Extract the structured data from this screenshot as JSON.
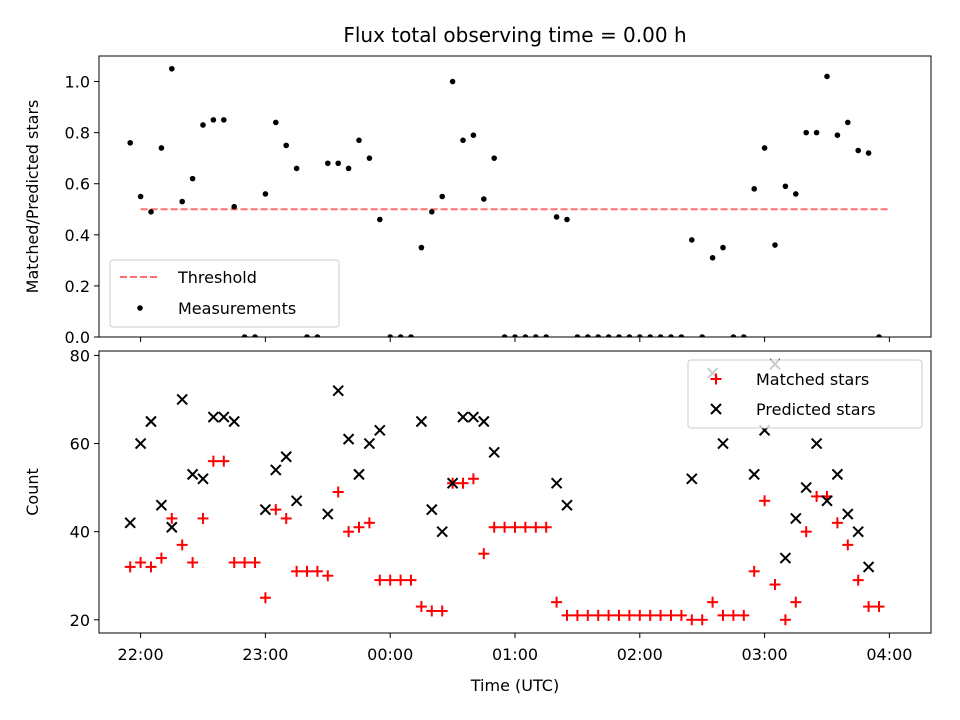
{
  "chart_data": [
    {
      "type": "scatter",
      "title": "Flux total observing time = 0.00 h",
      "xlabel": "",
      "ylabel": "Matched/Predicted stars",
      "ylim": [
        0,
        1.1
      ],
      "xlim": [
        "21:40",
        "04:20"
      ],
      "y_ticks": [
        "0.0",
        "0.2",
        "0.4",
        "0.6",
        "0.8",
        "1.0"
      ],
      "x_ticks": [
        "22:00",
        "23:00",
        "00:00",
        "01:00",
        "02:00",
        "03:00",
        "04:00"
      ],
      "legend_position": "lower-left",
      "threshold": {
        "name": "Threshold",
        "y": 0.5,
        "x_range": [
          "22:00",
          "04:00"
        ],
        "color": "#ff6f6f",
        "style": "dashed"
      },
      "series": [
        {
          "name": "Measurements",
          "color": "#000000",
          "points": [
            [
              "21:55",
              0.76
            ],
            [
              "22:00",
              0.55
            ],
            [
              "22:05",
              0.49
            ],
            [
              "22:10",
              0.74
            ],
            [
              "22:15",
              1.05
            ],
            [
              "22:20",
              0.53
            ],
            [
              "22:25",
              0.62
            ],
            [
              "22:30",
              0.83
            ],
            [
              "22:35",
              0.85
            ],
            [
              "22:40",
              0.85
            ],
            [
              "22:45",
              0.51
            ],
            [
              "22:50",
              0.0
            ],
            [
              "22:55",
              0.0
            ],
            [
              "23:00",
              0.56
            ],
            [
              "23:05",
              0.84
            ],
            [
              "23:10",
              0.75
            ],
            [
              "23:15",
              0.66
            ],
            [
              "23:20",
              0.0
            ],
            [
              "23:25",
              0.0
            ],
            [
              "23:30",
              0.68
            ],
            [
              "23:35",
              0.68
            ],
            [
              "23:40",
              0.66
            ],
            [
              "23:45",
              0.77
            ],
            [
              "23:50",
              0.7
            ],
            [
              "23:55",
              0.46
            ],
            [
              "00:00",
              0.0
            ],
            [
              "00:05",
              0.0
            ],
            [
              "00:10",
              0.0
            ],
            [
              "00:15",
              0.35
            ],
            [
              "00:20",
              0.49
            ],
            [
              "00:25",
              0.55
            ],
            [
              "00:30",
              1.0
            ],
            [
              "00:35",
              0.77
            ],
            [
              "00:40",
              0.79
            ],
            [
              "00:45",
              0.54
            ],
            [
              "00:50",
              0.7
            ],
            [
              "00:55",
              0.0
            ],
            [
              "01:00",
              0.0
            ],
            [
              "01:05",
              0.0
            ],
            [
              "01:10",
              0.0
            ],
            [
              "01:15",
              0.0
            ],
            [
              "01:20",
              0.47
            ],
            [
              "01:25",
              0.46
            ],
            [
              "01:30",
              0.0
            ],
            [
              "01:35",
              0.0
            ],
            [
              "01:40",
              0.0
            ],
            [
              "01:45",
              0.0
            ],
            [
              "01:50",
              0.0
            ],
            [
              "01:55",
              0.0
            ],
            [
              "02:00",
              0.0
            ],
            [
              "02:05",
              0.0
            ],
            [
              "02:10",
              0.0
            ],
            [
              "02:15",
              0.0
            ],
            [
              "02:20",
              0.0
            ],
            [
              "02:25",
              0.38
            ],
            [
              "02:30",
              0.0
            ],
            [
              "02:35",
              0.31
            ],
            [
              "02:40",
              0.35
            ],
            [
              "02:45",
              0.0
            ],
            [
              "02:50",
              0.0
            ],
            [
              "02:55",
              0.58
            ],
            [
              "03:00",
              0.74
            ],
            [
              "03:05",
              0.36
            ],
            [
              "03:10",
              0.59
            ],
            [
              "03:15",
              0.56
            ],
            [
              "03:20",
              0.8
            ],
            [
              "03:25",
              0.8
            ],
            [
              "03:30",
              1.02
            ],
            [
              "03:35",
              0.79
            ],
            [
              "03:40",
              0.84
            ],
            [
              "03:45",
              0.73
            ],
            [
              "03:50",
              0.72
            ],
            [
              "03:55",
              0.0
            ]
          ]
        }
      ]
    },
    {
      "type": "scatter",
      "title": "",
      "xlabel": "Time (UTC)",
      "ylabel": "Count",
      "ylim": [
        17,
        81
      ],
      "xlim": [
        "21:40",
        "04:20"
      ],
      "y_ticks": [
        "20",
        "40",
        "60",
        "80"
      ],
      "x_ticks": [
        "22:00",
        "23:00",
        "00:00",
        "01:00",
        "02:00",
        "03:00",
        "04:00"
      ],
      "legend_position": "upper-right",
      "series": [
        {
          "name": "Matched stars",
          "color": "#ff0000",
          "marker": "+",
          "points": [
            [
              "21:55",
              32
            ],
            [
              "22:00",
              33
            ],
            [
              "22:05",
              32
            ],
            [
              "22:10",
              34
            ],
            [
              "22:15",
              43
            ],
            [
              "22:20",
              37
            ],
            [
              "22:25",
              33
            ],
            [
              "22:30",
              43
            ],
            [
              "22:35",
              56
            ],
            [
              "22:40",
              56
            ],
            [
              "22:45",
              33
            ],
            [
              "22:50",
              33
            ],
            [
              "22:55",
              33
            ],
            [
              "23:00",
              25
            ],
            [
              "23:05",
              45
            ],
            [
              "23:10",
              43
            ],
            [
              "23:15",
              31
            ],
            [
              "23:20",
              31
            ],
            [
              "23:25",
              31
            ],
            [
              "23:30",
              30
            ],
            [
              "23:35",
              49
            ],
            [
              "23:40",
              40
            ],
            [
              "23:45",
              41
            ],
            [
              "23:50",
              42
            ],
            [
              "23:55",
              29
            ],
            [
              "00:00",
              29
            ],
            [
              "00:05",
              29
            ],
            [
              "00:10",
              29
            ],
            [
              "00:15",
              23
            ],
            [
              "00:20",
              22
            ],
            [
              "00:25",
              22
            ],
            [
              "00:30",
              51
            ],
            [
              "00:35",
              51
            ],
            [
              "00:40",
              52
            ],
            [
              "00:45",
              35
            ],
            [
              "00:50",
              41
            ],
            [
              "00:55",
              41
            ],
            [
              "01:00",
              41
            ],
            [
              "01:05",
              41
            ],
            [
              "01:10",
              41
            ],
            [
              "01:15",
              41
            ],
            [
              "01:20",
              24
            ],
            [
              "01:25",
              21
            ],
            [
              "01:30",
              21
            ],
            [
              "01:35",
              21
            ],
            [
              "01:40",
              21
            ],
            [
              "01:45",
              21
            ],
            [
              "01:50",
              21
            ],
            [
              "01:55",
              21
            ],
            [
              "02:00",
              21
            ],
            [
              "02:05",
              21
            ],
            [
              "02:10",
              21
            ],
            [
              "02:15",
              21
            ],
            [
              "02:20",
              21
            ],
            [
              "02:25",
              20
            ],
            [
              "02:30",
              20
            ],
            [
              "02:35",
              24
            ],
            [
              "02:40",
              21
            ],
            [
              "02:45",
              21
            ],
            [
              "02:50",
              21
            ],
            [
              "02:55",
              31
            ],
            [
              "03:00",
              47
            ],
            [
              "03:05",
              28
            ],
            [
              "03:10",
              20
            ],
            [
              "03:15",
              24
            ],
            [
              "03:20",
              40
            ],
            [
              "03:25",
              48
            ],
            [
              "03:30",
              48
            ],
            [
              "03:35",
              42
            ],
            [
              "03:40",
              37
            ],
            [
              "03:45",
              29
            ],
            [
              "03:50",
              23
            ],
            [
              "03:55",
              23
            ]
          ]
        },
        {
          "name": "Predicted stars",
          "color": "#000000",
          "marker": "x",
          "points": [
            [
              "21:55",
              42
            ],
            [
              "22:00",
              60
            ],
            [
              "22:05",
              65
            ],
            [
              "22:10",
              46
            ],
            [
              "22:15",
              41
            ],
            [
              "22:20",
              70
            ],
            [
              "22:25",
              53
            ],
            [
              "22:30",
              52
            ],
            [
              "22:35",
              66
            ],
            [
              "22:40",
              66
            ],
            [
              "22:45",
              65
            ],
            [
              "23:00",
              45
            ],
            [
              "23:05",
              54
            ],
            [
              "23:10",
              57
            ],
            [
              "23:15",
              47
            ],
            [
              "23:30",
              44
            ],
            [
              "23:35",
              72
            ],
            [
              "23:40",
              61
            ],
            [
              "23:45",
              53
            ],
            [
              "23:50",
              60
            ],
            [
              "23:55",
              63
            ],
            [
              "00:15",
              65
            ],
            [
              "00:20",
              45
            ],
            [
              "00:25",
              40
            ],
            [
              "00:30",
              51
            ],
            [
              "00:35",
              66
            ],
            [
              "00:40",
              66
            ],
            [
              "00:45",
              65
            ],
            [
              "00:50",
              58
            ],
            [
              "01:20",
              51
            ],
            [
              "01:25",
              46
            ],
            [
              "02:25",
              52
            ],
            [
              "02:35",
              76
            ],
            [
              "02:40",
              60
            ],
            [
              "02:55",
              53
            ],
            [
              "03:00",
              63
            ],
            [
              "03:05",
              78
            ],
            [
              "03:10",
              34
            ],
            [
              "03:15",
              43
            ],
            [
              "03:20",
              50
            ],
            [
              "03:25",
              60
            ],
            [
              "03:30",
              47
            ],
            [
              "03:35",
              53
            ],
            [
              "03:40",
              44
            ],
            [
              "03:45",
              40
            ],
            [
              "03:50",
              32
            ]
          ]
        }
      ]
    }
  ]
}
